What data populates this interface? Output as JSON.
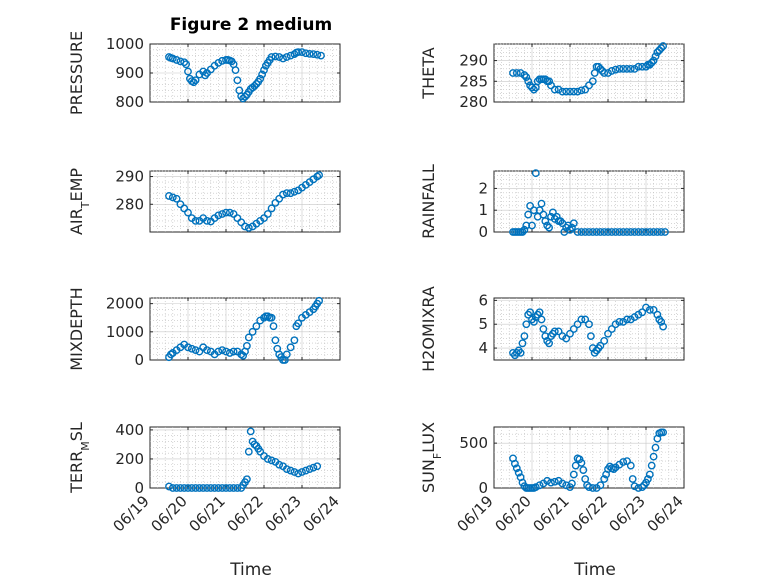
{
  "figure": {
    "title": "Figure 2 medium",
    "marker_color": "#0072BD",
    "grid": "major and minor",
    "xlabel": "Time"
  },
  "chart_data": [
    {
      "type": "scatter",
      "ylabel": "PRESSURE",
      "ylim": [
        800,
        1000
      ],
      "yticks": [
        800,
        900,
        1000
      ],
      "xlim": [
        0,
        5
      ],
      "xtick_labels": [
        "06/19",
        "06/20",
        "06/21",
        "06/22",
        "06/23",
        "06/24"
      ],
      "x_unit": "days since 06/19",
      "series": [
        {
          "x": [
            0.5,
            0.55,
            0.6,
            0.7,
            0.8,
            0.9,
            0.95,
            1.0,
            1.05,
            1.1,
            1.15,
            1.2,
            1.3,
            1.4,
            1.45,
            1.5,
            1.6,
            1.7,
            1.8,
            1.9,
            2.0,
            2.05,
            2.1,
            2.15,
            2.2,
            2.25,
            2.3,
            2.35,
            2.4,
            2.45,
            2.5,
            2.55,
            2.6,
            2.65,
            2.7,
            2.75,
            2.8,
            2.85,
            2.9,
            2.95,
            3.0,
            3.05,
            3.1,
            3.15,
            3.2,
            3.3,
            3.4,
            3.5,
            3.6,
            3.7,
            3.8,
            3.85,
            3.9,
            4.0,
            4.1,
            4.2,
            4.3,
            4.4,
            4.5
          ],
          "y": [
            955,
            952,
            950,
            945,
            940,
            937,
            930,
            905,
            880,
            872,
            868,
            875,
            895,
            905,
            892,
            900,
            912,
            925,
            935,
            942,
            945,
            945,
            943,
            940,
            930,
            910,
            875,
            840,
            820,
            812,
            818,
            825,
            835,
            845,
            850,
            855,
            862,
            870,
            880,
            895,
            910,
            925,
            935,
            945,
            955,
            957,
            955,
            950,
            955,
            960,
            965,
            970,
            972,
            972,
            968,
            966,
            965,
            963,
            960
          ]
        }
      ]
    },
    {
      "type": "scatter",
      "ylabel": "THETA",
      "ylim": [
        280,
        294
      ],
      "yticks": [
        280,
        285,
        290
      ],
      "xlim": [
        0,
        5
      ],
      "xtick_labels": [
        "06/19",
        "06/20",
        "06/21",
        "06/22",
        "06/23",
        "06/24"
      ],
      "x_unit": "days since 06/19",
      "series": [
        {
          "x": [
            0.5,
            0.6,
            0.7,
            0.8,
            0.85,
            0.9,
            0.95,
            1.0,
            1.05,
            1.1,
            1.15,
            1.2,
            1.25,
            1.3,
            1.35,
            1.4,
            1.45,
            1.5,
            1.6,
            1.7,
            1.8,
            1.9,
            2.0,
            2.1,
            2.2,
            2.3,
            2.4,
            2.5,
            2.6,
            2.65,
            2.7,
            2.75,
            2.8,
            2.85,
            2.9,
            3.0,
            3.1,
            3.2,
            3.3,
            3.4,
            3.5,
            3.6,
            3.7,
            3.8,
            3.9,
            4.0,
            4.05,
            4.1,
            4.15,
            4.2,
            4.25,
            4.3,
            4.35,
            4.4,
            4.45
          ],
          "y": [
            287,
            287,
            287,
            286.5,
            286,
            285,
            284,
            283.5,
            283,
            283.5,
            285,
            285.5,
            285.5,
            285.5,
            285.5,
            285,
            285,
            284,
            283,
            283,
            282.5,
            282.5,
            282.5,
            282.5,
            282.5,
            282.8,
            283,
            284,
            285,
            287,
            288.5,
            288.5,
            288,
            287.5,
            287,
            287,
            287.5,
            287.8,
            288,
            288,
            288,
            288,
            288,
            288.5,
            288.5,
            288.5,
            289,
            289,
            289.5,
            290,
            291,
            292,
            292.5,
            293,
            293.5
          ]
        }
      ]
    },
    {
      "type": "scatter",
      "ylabel": "AIR_TEMP",
      "ylim": [
        270,
        292
      ],
      "yticks": [
        280,
        290
      ],
      "xlim": [
        0,
        5
      ],
      "xtick_labels": [
        "06/19",
        "06/20",
        "06/21",
        "06/22",
        "06/23",
        "06/24"
      ],
      "x_unit": "days since 06/19",
      "series": [
        {
          "x": [
            0.5,
            0.6,
            0.7,
            0.8,
            0.9,
            1.0,
            1.1,
            1.2,
            1.3,
            1.4,
            1.5,
            1.6,
            1.7,
            1.8,
            1.9,
            2.0,
            2.1,
            2.2,
            2.3,
            2.4,
            2.5,
            2.6,
            2.7,
            2.8,
            2.9,
            3.0,
            3.1,
            3.2,
            3.3,
            3.4,
            3.5,
            3.6,
            3.7,
            3.8,
            3.9,
            4.0,
            4.1,
            4.2,
            4.3,
            4.4,
            4.45
          ],
          "y": [
            283,
            282.5,
            282,
            280,
            278.5,
            277,
            275,
            274,
            274,
            275,
            274,
            273.8,
            275,
            276,
            276.5,
            277,
            277,
            276.5,
            275,
            273.5,
            272,
            271.5,
            272,
            273,
            274,
            275,
            276.5,
            278.5,
            280.5,
            282,
            283.5,
            284,
            284,
            284.5,
            285,
            286,
            287,
            288,
            289,
            290,
            290.5
          ]
        }
      ]
    },
    {
      "type": "scatter",
      "ylabel": "RAINFALL",
      "ylim": [
        0,
        2.8
      ],
      "yticks": [
        0,
        1,
        2
      ],
      "xlim": [
        0,
        5
      ],
      "xtick_labels": [
        "06/19",
        "06/20",
        "06/21",
        "06/22",
        "06/23",
        "06/24"
      ],
      "x_unit": "days since 06/19",
      "series": [
        {
          "x": [
            0.5,
            0.55,
            0.6,
            0.65,
            0.7,
            0.75,
            0.8,
            0.85,
            0.9,
            0.95,
            1.0,
            1.05,
            1.1,
            1.15,
            1.2,
            1.25,
            1.3,
            1.35,
            1.4,
            1.45,
            1.5,
            1.55,
            1.6,
            1.65,
            1.7,
            1.75,
            1.8,
            1.85,
            1.9,
            1.95,
            2.0,
            2.05,
            2.1,
            2.2,
            2.3,
            2.4,
            2.5,
            2.6,
            2.7,
            2.8,
            2.9,
            3.0,
            3.1,
            3.2,
            3.3,
            3.4,
            3.5,
            3.6,
            3.7,
            3.8,
            3.9,
            4.0,
            4.1,
            4.2,
            4.3,
            4.4,
            4.5
          ],
          "y": [
            0,
            0,
            0,
            0,
            0,
            0,
            0.1,
            0.3,
            0.8,
            1.2,
            0.3,
            1.0,
            2.7,
            0.7,
            1.0,
            1.3,
            0.8,
            0.5,
            0.3,
            0.2,
            0.7,
            0.9,
            0.6,
            0.7,
            0.5,
            0.5,
            0.4,
            0,
            0.2,
            0.3,
            0.1,
            0.2,
            0.4,
            0,
            0,
            0,
            0,
            0,
            0,
            0,
            0,
            0,
            0,
            0,
            0,
            0,
            0,
            0,
            0,
            0,
            0,
            0,
            0,
            0,
            0,
            0,
            0
          ]
        }
      ]
    },
    {
      "type": "scatter",
      "ylabel": "MIXDEPTH",
      "ylim": [
        0,
        2200
      ],
      "yticks": [
        0,
        1000,
        2000
      ],
      "xlim": [
        0,
        5
      ],
      "xtick_labels": [
        "06/19",
        "06/20",
        "06/21",
        "06/22",
        "06/23",
        "06/24"
      ],
      "x_unit": "days since 06/19",
      "series": [
        {
          "x": [
            0.5,
            0.55,
            0.6,
            0.7,
            0.8,
            0.9,
            1.0,
            1.1,
            1.2,
            1.3,
            1.4,
            1.5,
            1.6,
            1.7,
            1.8,
            1.9,
            2.0,
            2.1,
            2.2,
            2.3,
            2.4,
            2.45,
            2.5,
            2.55,
            2.6,
            2.7,
            2.8,
            2.9,
            3.0,
            3.05,
            3.1,
            3.15,
            3.2,
            3.25,
            3.3,
            3.35,
            3.4,
            3.45,
            3.5,
            3.55,
            3.6,
            3.7,
            3.8,
            3.85,
            3.9,
            4.0,
            4.1,
            4.2,
            4.3,
            4.35,
            4.4,
            4.45
          ],
          "y": [
            100,
            200,
            250,
            350,
            450,
            550,
            450,
            400,
            350,
            300,
            450,
            350,
            300,
            200,
            300,
            350,
            300,
            250,
            300,
            300,
            200,
            150,
            300,
            500,
            800,
            1000,
            1200,
            1400,
            1500,
            1550,
            1550,
            1500,
            1500,
            1200,
            700,
            400,
            200,
            100,
            0,
            0,
            200,
            450,
            700,
            1200,
            1300,
            1500,
            1600,
            1700,
            1800,
            1900,
            2000,
            2100
          ]
        }
      ]
    },
    {
      "type": "scatter",
      "ylabel": "H2OMIXRA",
      "ylim": [
        3.5,
        6.1
      ],
      "yticks": [
        4,
        5,
        6
      ],
      "xlim": [
        0,
        5
      ],
      "xtick_labels": [
        "06/19",
        "06/20",
        "06/21",
        "06/22",
        "06/23",
        "06/24"
      ],
      "x_unit": "days since 06/19",
      "series": [
        {
          "x": [
            0.5,
            0.55,
            0.6,
            0.65,
            0.7,
            0.75,
            0.8,
            0.85,
            0.9,
            0.95,
            1.0,
            1.05,
            1.1,
            1.15,
            1.2,
            1.25,
            1.3,
            1.35,
            1.4,
            1.45,
            1.5,
            1.55,
            1.6,
            1.7,
            1.8,
            1.9,
            2.0,
            2.1,
            2.2,
            2.3,
            2.4,
            2.5,
            2.55,
            2.6,
            2.65,
            2.7,
            2.75,
            2.8,
            2.9,
            3.0,
            3.1,
            3.2,
            3.3,
            3.4,
            3.5,
            3.6,
            3.7,
            3.8,
            3.9,
            4.0,
            4.1,
            4.2,
            4.3,
            4.35,
            4.4,
            4.45
          ],
          "y": [
            3.8,
            3.7,
            3.8,
            3.9,
            3.8,
            4.2,
            4.5,
            5.0,
            5.4,
            5.5,
            5.2,
            5.1,
            5.3,
            5.4,
            5.5,
            5.2,
            4.8,
            4.5,
            4.3,
            4.2,
            4.5,
            4.6,
            4.7,
            4.7,
            4.5,
            4.4,
            4.6,
            4.8,
            5.0,
            5.2,
            5.2,
            5.0,
            4.5,
            4.0,
            3.8,
            3.9,
            4.0,
            4.1,
            4.3,
            4.6,
            4.8,
            5.0,
            5.1,
            5.1,
            5.2,
            5.2,
            5.3,
            5.4,
            5.5,
            5.7,
            5.6,
            5.6,
            5.4,
            5.2,
            5.1,
            4.9
          ]
        }
      ]
    },
    {
      "type": "scatter",
      "ylabel": "TERR_MSL",
      "ylim": [
        0,
        420
      ],
      "yticks": [
        0,
        200,
        400
      ],
      "xlim": [
        0,
        5
      ],
      "xtick_labels": [
        "06/19",
        "06/20",
        "06/21",
        "06/22",
        "06/23",
        "06/24"
      ],
      "x_unit": "days since 06/19",
      "series": [
        {
          "x": [
            0.5,
            0.6,
            0.7,
            0.8,
            0.9,
            1.0,
            1.1,
            1.2,
            1.3,
            1.4,
            1.5,
            1.6,
            1.7,
            1.8,
            1.9,
            2.0,
            2.1,
            2.2,
            2.3,
            2.4,
            2.45,
            2.5,
            2.55,
            2.6,
            2.65,
            2.7,
            2.75,
            2.8,
            2.85,
            2.9,
            3.0,
            3.1,
            3.2,
            3.3,
            3.4,
            3.5,
            3.6,
            3.7,
            3.8,
            3.9,
            4.0,
            4.1,
            4.2,
            4.3,
            4.4
          ],
          "y": [
            10,
            0,
            0,
            0,
            0,
            0,
            0,
            0,
            0,
            0,
            0,
            0,
            0,
            0,
            0,
            0,
            0,
            0,
            0,
            0,
            20,
            40,
            60,
            250,
            390,
            320,
            300,
            290,
            270,
            250,
            220,
            200,
            190,
            180,
            160,
            150,
            130,
            120,
            110,
            100,
            110,
            120,
            130,
            140,
            150
          ]
        }
      ]
    },
    {
      "type": "scatter",
      "ylabel": "SUN_FLUX",
      "ylim": [
        0,
        680
      ],
      "yticks": [
        0,
        500
      ],
      "xlim": [
        0,
        5
      ],
      "xtick_labels": [
        "06/19",
        "06/20",
        "06/21",
        "06/22",
        "06/23",
        "06/24"
      ],
      "x_unit": "days since 06/19",
      "series": [
        {
          "x": [
            0.5,
            0.55,
            0.6,
            0.65,
            0.7,
            0.75,
            0.8,
            0.85,
            0.9,
            0.95,
            1.0,
            1.05,
            1.1,
            1.2,
            1.3,
            1.4,
            1.5,
            1.6,
            1.7,
            1.8,
            1.9,
            2.0,
            2.05,
            2.1,
            2.15,
            2.2,
            2.25,
            2.3,
            2.35,
            2.4,
            2.45,
            2.5,
            2.6,
            2.7,
            2.8,
            2.9,
            2.95,
            3.0,
            3.05,
            3.1,
            3.15,
            3.2,
            3.3,
            3.4,
            3.5,
            3.6,
            3.65,
            3.7,
            3.8,
            3.9,
            3.95,
            4.0,
            4.05,
            4.1,
            4.15,
            4.2,
            4.25,
            4.3,
            4.35,
            4.4,
            4.45
          ],
          "y": [
            330,
            270,
            220,
            170,
            120,
            60,
            20,
            0,
            0,
            0,
            0,
            0,
            10,
            30,
            50,
            80,
            60,
            70,
            80,
            50,
            30,
            10,
            50,
            150,
            250,
            330,
            320,
            280,
            200,
            100,
            30,
            10,
            0,
            0,
            30,
            100,
            150,
            210,
            240,
            220,
            210,
            230,
            260,
            290,
            300,
            250,
            100,
            20,
            0,
            10,
            30,
            60,
            100,
            150,
            250,
            350,
            450,
            550,
            610,
            620,
            620
          ]
        }
      ]
    }
  ]
}
